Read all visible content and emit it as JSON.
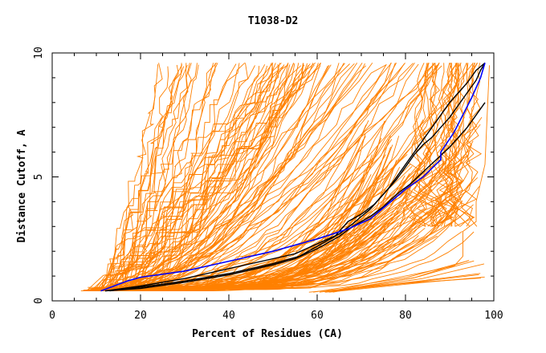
{
  "chart_data": {
    "type": "line",
    "title": "T1038-D2",
    "xlabel": "Percent of Residues (CA)",
    "ylabel": "Distance Cutoff, A",
    "xlim": [
      0,
      100
    ],
    "ylim": [
      0,
      10
    ],
    "x_ticks": [
      0,
      20,
      40,
      60,
      80,
      100
    ],
    "y_ticks": [
      0,
      5,
      10
    ],
    "grid": false,
    "legend": "none",
    "colors": {
      "models": "#ff8000",
      "highlight": "#0000ff",
      "reference": "#000000",
      "axes": "#000000"
    },
    "series": [
      {
        "color": "#0000ff",
        "role": "highlight",
        "x": [
          11,
          14,
          17,
          20,
          30,
          40,
          50,
          60,
          67,
          72,
          76,
          80,
          84,
          88,
          88,
          91,
          93,
          95,
          97,
          98
        ],
        "y": [
          0.4,
          0.6,
          0.8,
          0.95,
          1.2,
          1.6,
          2.0,
          2.5,
          2.9,
          3.3,
          3.9,
          4.5,
          5.0,
          5.7,
          6.0,
          6.8,
          7.5,
          8.2,
          9.0,
          9.6
        ]
      },
      {
        "color": "#000000",
        "role": "reference",
        "x": [
          13,
          20,
          30,
          40,
          50,
          56,
          60,
          64,
          67,
          70,
          73,
          76,
          78,
          80,
          82,
          84,
          86,
          88,
          90,
          92,
          94,
          96,
          97,
          98
        ],
        "y": [
          0.4,
          0.55,
          0.8,
          1.1,
          1.5,
          1.8,
          2.2,
          2.6,
          3.2,
          3.5,
          3.9,
          4.5,
          4.9,
          5.4,
          5.9,
          6.3,
          6.6,
          7.0,
          7.4,
          7.9,
          8.4,
          8.9,
          9.3,
          9.6
        ]
      },
      {
        "color": "#000000",
        "role": "reference",
        "x": [
          12,
          20,
          30,
          40,
          50,
          55,
          60,
          65,
          68,
          72,
          75,
          78,
          81,
          84,
          87,
          90,
          92,
          94,
          96,
          98
        ],
        "y": [
          0.4,
          0.5,
          0.75,
          1.05,
          1.45,
          1.7,
          2.1,
          2.6,
          3.0,
          3.4,
          3.8,
          4.3,
          4.7,
          5.2,
          5.7,
          6.2,
          6.6,
          7.0,
          7.5,
          8.0
        ]
      },
      {
        "color": "#000000",
        "role": "reference",
        "x": [
          12,
          20,
          30,
          40,
          50,
          55,
          60,
          65,
          68,
          70,
          72,
          74,
          76,
          78,
          80,
          82,
          84,
          86,
          88,
          90,
          92,
          94,
          96,
          98
        ],
        "y": [
          0.4,
          0.6,
          0.9,
          1.3,
          1.7,
          1.9,
          2.3,
          2.7,
          3.1,
          3.4,
          3.7,
          4.1,
          4.5,
          5.0,
          5.5,
          6.0,
          6.5,
          7.0,
          7.5,
          8.0,
          8.4,
          8.8,
          9.3,
          9.6
        ]
      }
    ]
  }
}
